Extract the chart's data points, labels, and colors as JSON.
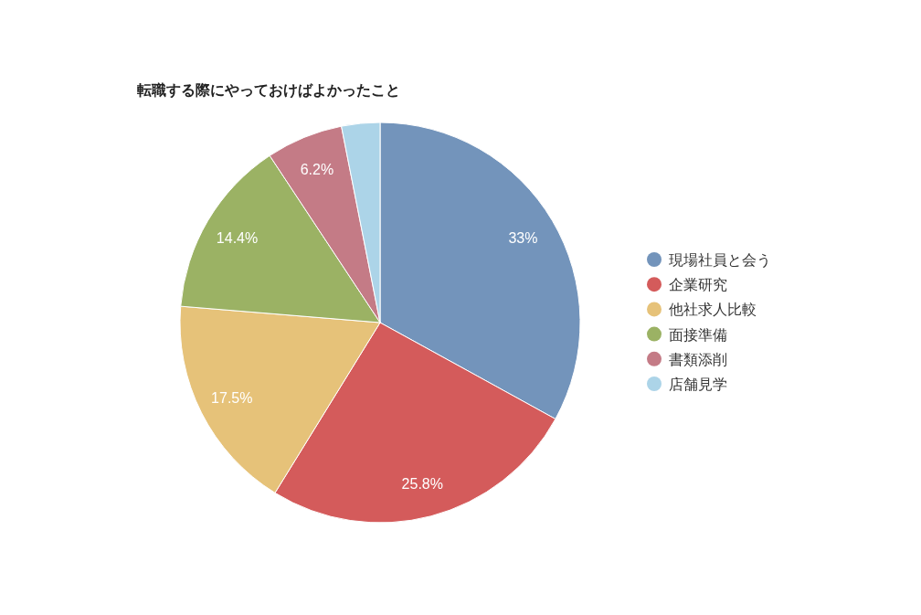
{
  "chart_data": {
    "type": "pie",
    "title": "転職する際にやっておけばよかったこと",
    "categories": [
      "現場社員と会う",
      "企業研究",
      "他社求人比較",
      "面接準備",
      "書類添削",
      "店舗見学"
    ],
    "values": [
      33,
      25.8,
      17.5,
      14.4,
      6.2,
      3.1
    ],
    "colors": [
      "#7394bb",
      "#d45b5b",
      "#e6c279",
      "#9bb264",
      "#c47b86",
      "#acd4e8"
    ],
    "value_labels": [
      "33%",
      "25.8%",
      "17.5%",
      "14.4%",
      "6.2%",
      null
    ],
    "legend": "right"
  }
}
